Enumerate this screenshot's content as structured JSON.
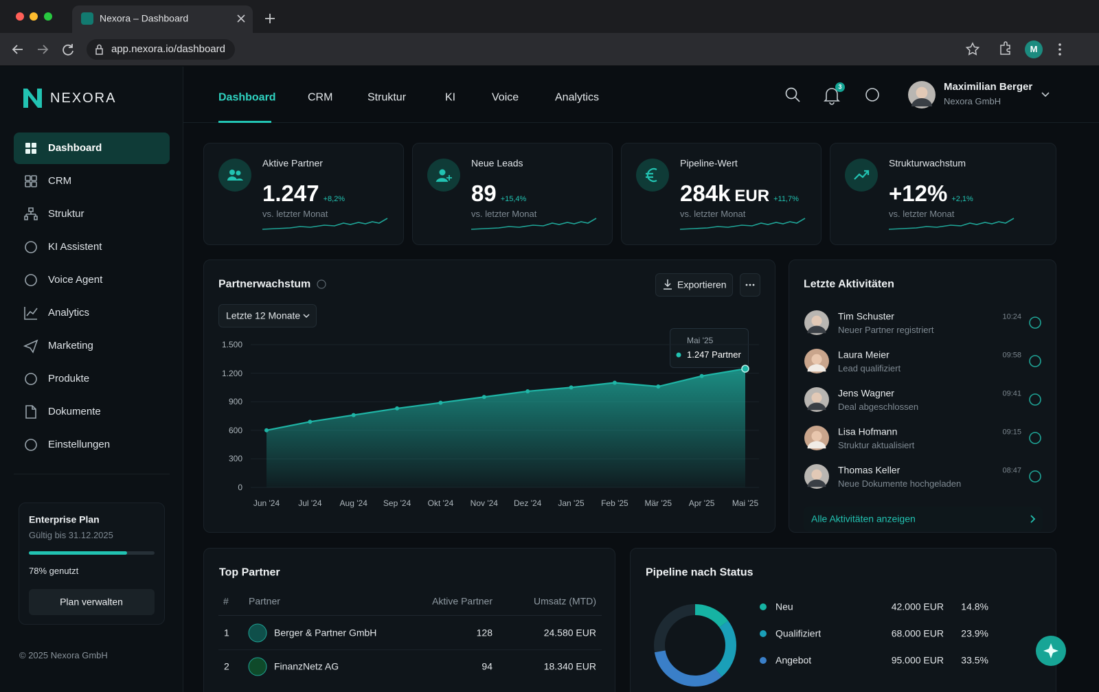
{
  "browser": {
    "tab_title": "Nexora – Dashboard",
    "url": "app.nexora.io/dashboard",
    "profile_initial": "M"
  },
  "sidebar": {
    "brand": "NEXORA",
    "items": [
      "Dashboard",
      "CRM",
      "Struktur",
      "KI Assistent",
      "Voice Agent",
      "Analytics",
      "Marketing",
      "Produkte",
      "Dokumente",
      "Einstellungen"
    ],
    "plan": {
      "title": "Enterprise Plan",
      "valid": "Gültig bis 31.12.2025",
      "usage": 78,
      "usage_label": "78% genutzt",
      "button": "Plan verwalten"
    },
    "footer": "© 2025 Nexora GmbH"
  },
  "topnav": {
    "tabs": [
      "Dashboard",
      "CRM",
      "Struktur",
      "KI",
      "Voice",
      "Analytics"
    ],
    "notifications": "3",
    "user": {
      "name": "Maximilian Berger",
      "company": "Nexora GmbH"
    }
  },
  "kpis": [
    {
      "title": "Aktive Partner",
      "value": "1.247",
      "delta": "+8,2%",
      "sub": "vs. letzter Monat"
    },
    {
      "title": "Neue Leads",
      "value": "89",
      "delta": "+15,4%",
      "sub": "vs. letzter Monat"
    },
    {
      "title": "Pipeline-Wert",
      "value": "284k",
      "unit": "EUR",
      "delta": "+11,7%",
      "sub": "vs. letzter Monat"
    },
    {
      "title": "Strukturwachstum",
      "value": "+12%",
      "delta": "+2,1%",
      "sub": "vs. letzter Monat"
    }
  ],
  "partner_chart": {
    "type": "area",
    "title": "Partnerwachstum",
    "export": "Exportieren",
    "range": "Letzte 12 Monate",
    "categories": [
      "Jun '24",
      "Jul '24",
      "Aug '24",
      "Sep '24",
      "Okt '24",
      "Nov '24",
      "Dez '24",
      "Jan '25",
      "Feb '25",
      "Mär '25",
      "Apr '25",
      "Mai '25"
    ],
    "values": [
      600,
      690,
      760,
      830,
      890,
      950,
      1010,
      1050,
      1100,
      1060,
      1170,
      1247
    ],
    "color": "#1fb5a6",
    "ylim": [
      0,
      1500
    ],
    "yticks": [
      0,
      300,
      600,
      900,
      {
        "value": 1200,
        "label": "1.200"
      },
      {
        "value": 1500,
        "label": "1.500"
      }
    ],
    "grid": true,
    "tooltip": {
      "label": "Mai '25",
      "value": "1.247 Partner"
    }
  },
  "activities": {
    "title": "Letzte Aktivitäten",
    "items": [
      {
        "name": "Tim Schuster",
        "action": "Neuer Partner registriert",
        "time": "10:24"
      },
      {
        "name": "Laura Meier",
        "action": "Lead qualifiziert",
        "time": "09:58"
      },
      {
        "name": "Jens Wagner",
        "action": "Deal abgeschlossen",
        "time": "09:41"
      },
      {
        "name": "Lisa Hofmann",
        "action": "Struktur aktualisiert",
        "time": "09:15"
      },
      {
        "name": "Thomas Keller",
        "action": "Neue Dokumente hochgeladen",
        "time": "08:47"
      }
    ],
    "link": "Alle Aktivitäten anzeigen"
  },
  "top_partner": {
    "title": "Top Partner",
    "columns": [
      "#",
      "Partner",
      "Aktive Partner",
      "Umsatz (MTD)"
    ],
    "rows": [
      [
        "1",
        "Berger & Partner GmbH",
        "128",
        "24.580 EUR"
      ],
      [
        "2",
        "FinanzNetz AG",
        "94",
        "18.340 EUR"
      ]
    ]
  },
  "pipeline": {
    "type": "donut",
    "title": "Pipeline nach Status",
    "categories": [
      "Neu",
      "Qualifiziert",
      "Angebot"
    ],
    "amounts": [
      "42.000 EUR",
      "68.000 EUR",
      "95.000 EUR"
    ],
    "values": [
      14.8,
      23.9,
      33.5
    ],
    "value_labels": [
      "14.8%",
      "23.9%",
      "33.5%"
    ],
    "colors": [
      "#16b3a3",
      "#1a9fb8",
      "#3a7fc8"
    ]
  }
}
